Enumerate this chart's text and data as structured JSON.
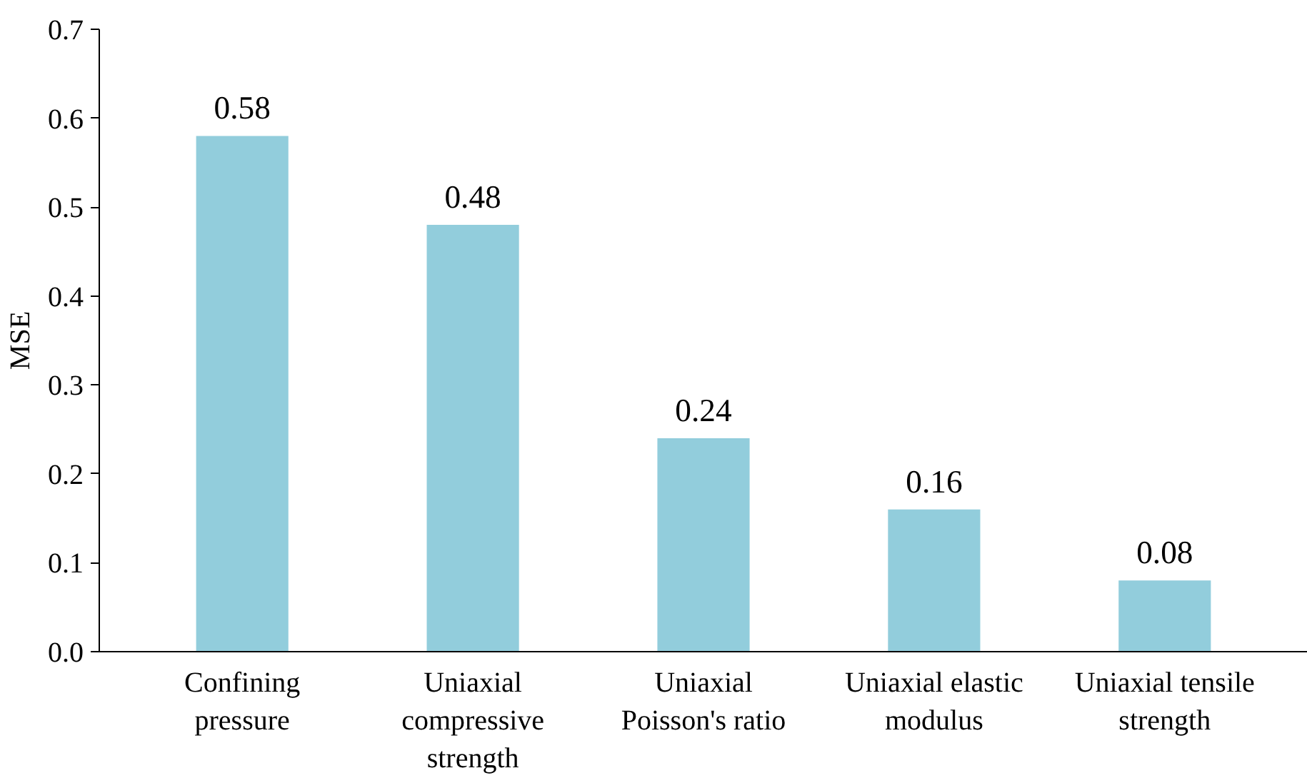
{
  "chart_data": {
    "type": "bar",
    "ylabel": "MSE",
    "categories": [
      "Confining\npressure",
      "Uniaxial\ncompressive\nstrength",
      "Uniaxial\nPoisson's ratio",
      "Uniaxial elastic\nmodulus",
      "Uniaxial tensile\nstrength"
    ],
    "values": [
      0.58,
      0.48,
      0.24,
      0.16,
      0.08
    ],
    "color": "#92cddc",
    "ylim": [
      0,
      0.7
    ],
    "yticks": [
      {
        "value": 0,
        "label": "0.0"
      },
      0.1,
      0.2,
      0.3,
      0.4,
      0.5,
      0.6,
      0.7
    ],
    "data_labels": true,
    "grid": false
  }
}
